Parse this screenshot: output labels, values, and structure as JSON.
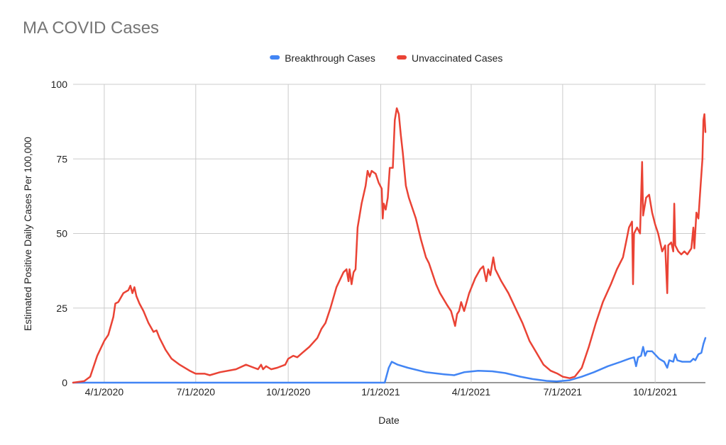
{
  "chart_data": {
    "type": "line",
    "title": "MA COVID Cases",
    "xlabel": "Date",
    "ylabel": "Estimated Positive Daily Cases Per 100,000",
    "ylim": [
      0,
      100
    ],
    "xlim": [
      "2020-03-01",
      "2021-11-20"
    ],
    "y_ticks": [
      0,
      25,
      50,
      75,
      100
    ],
    "x_ticks": [
      {
        "date": "2020-04-01",
        "label": "4/1/2020"
      },
      {
        "date": "2020-07-01",
        "label": "7/1/2020"
      },
      {
        "date": "2020-10-01",
        "label": "10/1/2020"
      },
      {
        "date": "2021-01-01",
        "label": "1/1/2021"
      },
      {
        "date": "2021-04-01",
        "label": "4/1/2021"
      },
      {
        "date": "2021-07-01",
        "label": "7/1/2021"
      },
      {
        "date": "2021-10-01",
        "label": "10/1/2021"
      }
    ],
    "grid": true,
    "legend_position": "top",
    "series": [
      {
        "name": "Breakthrough Cases",
        "color": "#4285f4",
        "points": [
          [
            "2020-03-01",
            0
          ],
          [
            "2021-01-01",
            0
          ],
          [
            "2021-01-05",
            0
          ],
          [
            "2021-01-09",
            5
          ],
          [
            "2021-01-12",
            7
          ],
          [
            "2021-01-18",
            6
          ],
          [
            "2021-01-28",
            5
          ],
          [
            "2021-02-15",
            3.5
          ],
          [
            "2021-03-05",
            2.8
          ],
          [
            "2021-03-15",
            2.5
          ],
          [
            "2021-03-25",
            3.5
          ],
          [
            "2021-04-08",
            4
          ],
          [
            "2021-04-22",
            3.8
          ],
          [
            "2021-05-05",
            3.2
          ],
          [
            "2021-05-20",
            2
          ],
          [
            "2021-06-01",
            1.2
          ],
          [
            "2021-06-15",
            0.6
          ],
          [
            "2021-06-25",
            0.4
          ],
          [
            "2021-07-08",
            0.8
          ],
          [
            "2021-07-20",
            2
          ],
          [
            "2021-08-01",
            3.5
          ],
          [
            "2021-08-15",
            5.5
          ],
          [
            "2021-08-28",
            7
          ],
          [
            "2021-09-05",
            8
          ],
          [
            "2021-09-10",
            8.5
          ],
          [
            "2021-09-12",
            5.5
          ],
          [
            "2021-09-14",
            8.5
          ],
          [
            "2021-09-17",
            9
          ],
          [
            "2021-09-19",
            12
          ],
          [
            "2021-09-21",
            9
          ],
          [
            "2021-09-23",
            10.5
          ],
          [
            "2021-09-28",
            10.5
          ],
          [
            "2021-10-05",
            8
          ],
          [
            "2021-10-10",
            7
          ],
          [
            "2021-10-13",
            5
          ],
          [
            "2021-10-15",
            7.5
          ],
          [
            "2021-10-19",
            7
          ],
          [
            "2021-10-21",
            9.5
          ],
          [
            "2021-10-23",
            7.5
          ],
          [
            "2021-10-28",
            7
          ],
          [
            "2021-11-05",
            7
          ],
          [
            "2021-11-08",
            8
          ],
          [
            "2021-11-10",
            7.5
          ],
          [
            "2021-11-13",
            9.5
          ],
          [
            "2021-11-16",
            10
          ],
          [
            "2021-11-18",
            13
          ],
          [
            "2021-11-20",
            15
          ]
        ]
      },
      {
        "name": "Unvaccinated Cases",
        "color": "#ea4335",
        "points": [
          [
            "2020-03-01",
            0
          ],
          [
            "2020-03-12",
            0.5
          ],
          [
            "2020-03-18",
            2
          ],
          [
            "2020-03-25",
            9
          ],
          [
            "2020-04-01",
            14
          ],
          [
            "2020-04-05",
            16
          ],
          [
            "2020-04-10",
            22
          ],
          [
            "2020-04-12",
            26.5
          ],
          [
            "2020-04-15",
            27
          ],
          [
            "2020-04-20",
            30
          ],
          [
            "2020-04-25",
            31
          ],
          [
            "2020-04-27",
            32.5
          ],
          [
            "2020-04-29",
            30
          ],
          [
            "2020-05-01",
            32
          ],
          [
            "2020-05-03",
            29
          ],
          [
            "2020-05-06",
            26.5
          ],
          [
            "2020-05-10",
            24
          ],
          [
            "2020-05-15",
            20
          ],
          [
            "2020-05-20",
            17
          ],
          [
            "2020-05-23",
            17.5
          ],
          [
            "2020-05-26",
            15
          ],
          [
            "2020-06-01",
            11
          ],
          [
            "2020-06-07",
            8
          ],
          [
            "2020-06-15",
            6
          ],
          [
            "2020-06-25",
            4
          ],
          [
            "2020-07-01",
            3
          ],
          [
            "2020-07-10",
            3
          ],
          [
            "2020-07-15",
            2.5
          ],
          [
            "2020-07-25",
            3.5
          ],
          [
            "2020-08-10",
            4.5
          ],
          [
            "2020-08-20",
            6
          ],
          [
            "2020-08-28",
            5
          ],
          [
            "2020-09-01",
            4.5
          ],
          [
            "2020-09-04",
            6
          ],
          [
            "2020-09-06",
            4.5
          ],
          [
            "2020-09-09",
            5.5
          ],
          [
            "2020-09-14",
            4.5
          ],
          [
            "2020-09-20",
            5
          ],
          [
            "2020-09-28",
            6
          ],
          [
            "2020-10-01",
            8
          ],
          [
            "2020-10-06",
            9
          ],
          [
            "2020-10-10",
            8.5
          ],
          [
            "2020-10-15",
            10
          ],
          [
            "2020-10-22",
            12
          ],
          [
            "2020-10-30",
            15
          ],
          [
            "2020-11-03",
            18
          ],
          [
            "2020-11-07",
            20
          ],
          [
            "2020-11-12",
            25
          ],
          [
            "2020-11-18",
            32
          ],
          [
            "2020-11-25",
            37
          ],
          [
            "2020-11-28",
            38
          ],
          [
            "2020-11-30",
            34
          ],
          [
            "2020-12-01",
            38
          ],
          [
            "2020-12-03",
            33
          ],
          [
            "2020-12-05",
            37
          ],
          [
            "2020-12-07",
            38
          ],
          [
            "2020-12-09",
            52
          ],
          [
            "2020-12-13",
            60
          ],
          [
            "2020-12-17",
            66
          ],
          [
            "2020-12-19",
            71
          ],
          [
            "2020-12-21",
            69
          ],
          [
            "2020-12-23",
            71
          ],
          [
            "2020-12-27",
            70
          ],
          [
            "2020-12-30",
            67
          ],
          [
            "2021-01-02",
            65
          ],
          [
            "2021-01-03",
            55
          ],
          [
            "2021-01-04",
            60
          ],
          [
            "2021-01-06",
            58
          ],
          [
            "2021-01-08",
            62
          ],
          [
            "2021-01-10",
            72
          ],
          [
            "2021-01-13",
            72
          ],
          [
            "2021-01-15",
            88
          ],
          [
            "2021-01-17",
            92
          ],
          [
            "2021-01-19",
            90
          ],
          [
            "2021-01-21",
            83
          ],
          [
            "2021-01-23",
            77
          ],
          [
            "2021-01-26",
            66
          ],
          [
            "2021-01-29",
            62
          ],
          [
            "2021-02-05",
            55
          ],
          [
            "2021-02-10",
            48
          ],
          [
            "2021-02-15",
            42
          ],
          [
            "2021-02-18",
            40
          ],
          [
            "2021-02-25",
            33
          ],
          [
            "2021-03-01",
            30
          ],
          [
            "2021-03-08",
            26
          ],
          [
            "2021-03-12",
            24
          ],
          [
            "2021-03-16",
            19
          ],
          [
            "2021-03-18",
            23
          ],
          [
            "2021-03-20",
            24
          ],
          [
            "2021-03-22",
            27
          ],
          [
            "2021-03-25",
            24
          ],
          [
            "2021-03-30",
            30
          ],
          [
            "2021-04-05",
            35
          ],
          [
            "2021-04-10",
            38
          ],
          [
            "2021-04-13",
            39
          ],
          [
            "2021-04-16",
            34
          ],
          [
            "2021-04-18",
            38
          ],
          [
            "2021-04-20",
            36
          ],
          [
            "2021-04-23",
            42
          ],
          [
            "2021-04-25",
            38
          ],
          [
            "2021-05-01",
            34
          ],
          [
            "2021-05-08",
            30
          ],
          [
            "2021-05-15",
            25
          ],
          [
            "2021-05-22",
            20
          ],
          [
            "2021-05-29",
            14
          ],
          [
            "2021-06-05",
            10
          ],
          [
            "2021-06-12",
            6
          ],
          [
            "2021-06-19",
            4
          ],
          [
            "2021-06-26",
            3
          ],
          [
            "2021-07-01",
            2
          ],
          [
            "2021-07-08",
            1.5
          ],
          [
            "2021-07-13",
            2
          ],
          [
            "2021-07-20",
            5
          ],
          [
            "2021-07-27",
            12
          ],
          [
            "2021-08-03",
            20
          ],
          [
            "2021-08-10",
            27
          ],
          [
            "2021-08-18",
            33
          ],
          [
            "2021-08-24",
            38
          ],
          [
            "2021-08-30",
            42
          ],
          [
            "2021-09-02",
            47
          ],
          [
            "2021-09-05",
            52
          ],
          [
            "2021-09-08",
            54
          ],
          [
            "2021-09-09",
            33
          ],
          [
            "2021-09-10",
            50
          ],
          [
            "2021-09-13",
            52
          ],
          [
            "2021-09-16",
            50
          ],
          [
            "2021-09-18",
            74
          ],
          [
            "2021-09-19",
            56
          ],
          [
            "2021-09-20",
            58
          ],
          [
            "2021-09-22",
            62
          ],
          [
            "2021-09-25",
            63
          ],
          [
            "2021-09-28",
            57
          ],
          [
            "2021-10-01",
            53
          ],
          [
            "2021-10-04",
            50
          ],
          [
            "2021-10-08",
            44
          ],
          [
            "2021-10-11",
            46
          ],
          [
            "2021-10-13",
            30
          ],
          [
            "2021-10-14",
            46
          ],
          [
            "2021-10-17",
            47
          ],
          [
            "2021-10-19",
            44
          ],
          [
            "2021-10-20",
            60
          ],
          [
            "2021-10-21",
            46
          ],
          [
            "2021-10-24",
            44
          ],
          [
            "2021-10-27",
            43
          ],
          [
            "2021-10-30",
            44
          ],
          [
            "2021-11-02",
            43
          ],
          [
            "2021-11-06",
            45
          ],
          [
            "2021-11-08",
            52
          ],
          [
            "2021-11-09",
            45
          ],
          [
            "2021-11-11",
            57
          ],
          [
            "2021-11-13",
            55
          ],
          [
            "2021-11-15",
            65
          ],
          [
            "2021-11-17",
            75
          ],
          [
            "2021-11-18",
            88
          ],
          [
            "2021-11-19",
            90
          ],
          [
            "2021-11-20",
            84
          ]
        ]
      }
    ]
  }
}
